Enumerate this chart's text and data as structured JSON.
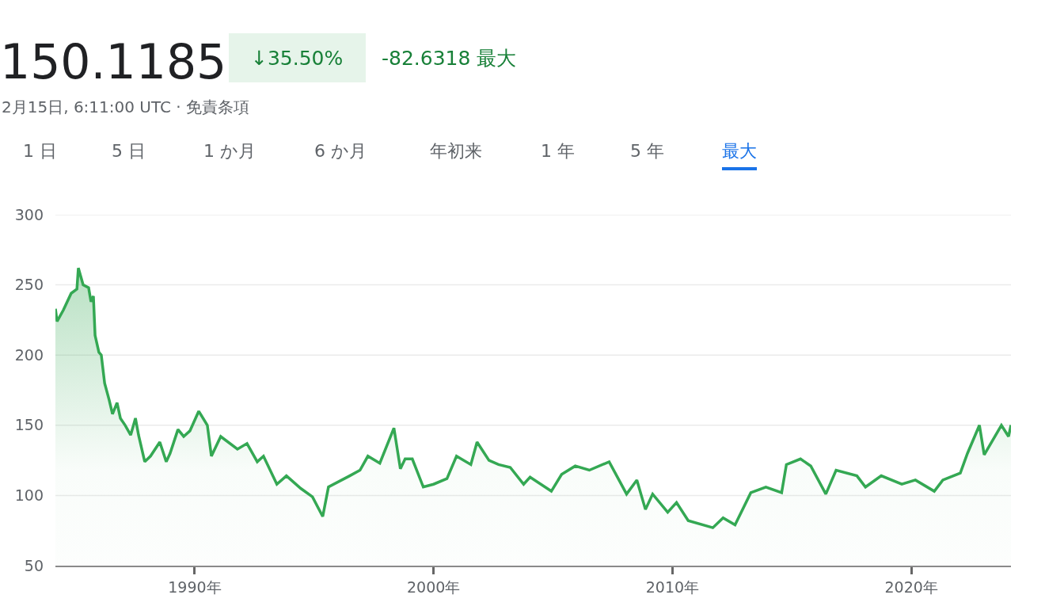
{
  "chart_data": {
    "type": "area",
    "title": "150.1185",
    "annotations": [
      "↓35.50%",
      "-82.6318 最大",
      "2月15日, 6:11:00 UTC · 免責条項",
      "1 日",
      "5 日",
      "1 か月",
      "6 か月",
      "年初来",
      "1 年",
      "5 年",
      "最大"
    ],
    "x": [
      1984.17,
      1984.24,
      1984.5,
      1984.83,
      1985.07,
      1985.13,
      1985.33,
      1985.56,
      1985.66,
      1985.76,
      1985.83,
      1985.99,
      1986.09,
      1986.23,
      1986.42,
      1986.56,
      1986.75,
      1986.89,
      1987.09,
      1987.32,
      1987.52,
      1987.65,
      1987.91,
      1988.15,
      1988.54,
      1988.81,
      1988.97,
      1989.3,
      1989.54,
      1989.8,
      1990.17,
      1990.53,
      1990.7,
      1991.09,
      1991.79,
      1992.19,
      1992.62,
      1992.88,
      1993.44,
      1993.84,
      1994.44,
      1994.93,
      1995.36,
      1995.6,
      1996.49,
      1996.92,
      1997.25,
      1997.75,
      1998.34,
      1998.61,
      1998.81,
      1999.11,
      1999.57,
      2000.0,
      2000.56,
      2000.96,
      2001.56,
      2001.82,
      2002.32,
      2002.72,
      2003.21,
      2003.77,
      2004.04,
      2004.93,
      2005.36,
      2005.93,
      2006.52,
      2007.35,
      2008.08,
      2008.51,
      2008.87,
      2009.17,
      2009.8,
      2010.17,
      2010.66,
      2011.69,
      2012.12,
      2012.62,
      2013.28,
      2013.91,
      2014.57,
      2014.77,
      2015.36,
      2015.79,
      2016.42,
      2016.85,
      2017.72,
      2018.08,
      2018.74,
      2019.6,
      2020.17,
      2020.96,
      2021.32,
      2022.05,
      2022.35,
      2022.85,
      2023.05,
      2023.77,
      2024.07,
      2024.17
    ],
    "series": [
      {
        "color": "#34a853",
        "values": [
          233,
          224,
          232,
          244,
          247,
          262,
          250,
          248,
          238,
          242,
          214,
          202,
          200,
          180,
          168,
          158,
          166,
          155,
          150,
          143,
          155,
          143,
          124,
          128,
          138,
          124,
          130,
          147,
          142,
          146,
          160,
          150,
          128,
          142,
          133,
          137,
          124,
          128,
          108,
          114,
          105,
          99,
          85,
          106,
          114,
          118,
          128,
          123,
          148,
          119,
          126,
          126,
          106,
          108,
          112,
          128,
          122,
          138,
          125,
          122,
          120,
          108,
          113,
          103,
          115,
          121,
          118,
          124,
          101,
          111,
          90,
          101,
          88,
          95,
          82,
          77,
          84,
          79,
          102,
          106,
          102,
          122,
          126,
          121,
          101,
          118,
          114,
          106,
          114,
          108,
          111,
          103,
          111,
          116,
          130,
          150,
          129,
          150,
          142,
          150.1
        ]
      }
    ],
    "xlim": [
      1984.17,
      2024.17
    ],
    "xticks": [
      {
        "value": 1990,
        "label": "1990年"
      },
      {
        "value": 2000,
        "label": "2000年"
      },
      {
        "value": 2010,
        "label": "2010年"
      },
      {
        "value": 2020,
        "label": "2020年"
      }
    ],
    "ylim": [
      50,
      300
    ],
    "yticks": [
      50,
      100,
      150,
      200,
      250,
      300
    ],
    "grid": "y",
    "marker": "none",
    "line_style": "solid"
  }
}
